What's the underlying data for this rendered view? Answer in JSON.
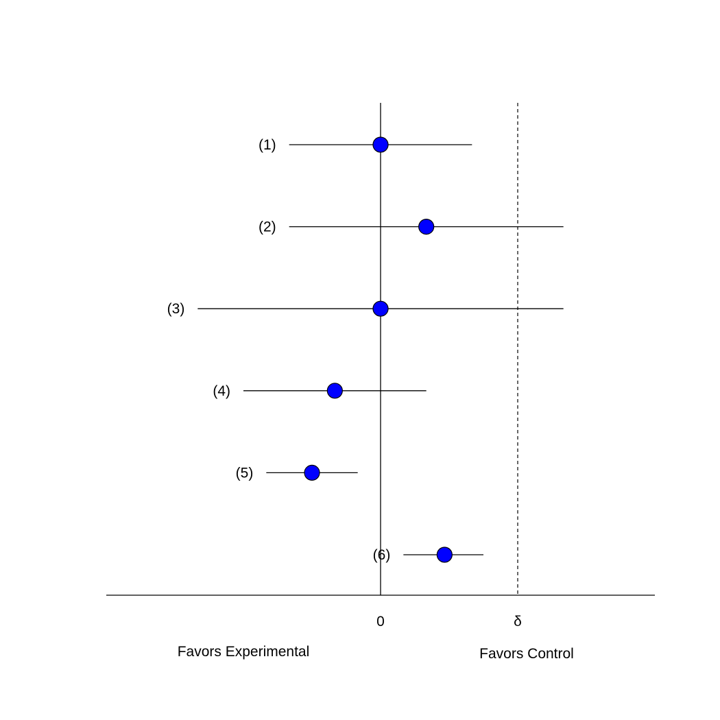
{
  "chart_data": {
    "type": "scatter",
    "subtype": "forest-plot",
    "title": "",
    "xlabel": "",
    "ylabel": "",
    "xlim": [
      -3.0,
      3.0
    ],
    "grid": false,
    "legend": "none",
    "x_ticks": [
      {
        "value": 0,
        "label": "0"
      },
      {
        "value": 1.5,
        "label": "δ"
      }
    ],
    "reference_lines": [
      {
        "name": "zero",
        "value": 0,
        "style": "solid"
      },
      {
        "name": "delta",
        "value": 1.5,
        "style": "dashed"
      }
    ],
    "side_labels": {
      "left": "Favors Experimental",
      "right": "Favors Control"
    },
    "points": [
      {
        "label": "(1)",
        "estimate": 0.0,
        "lower": -1.0,
        "upper": 1.0
      },
      {
        "label": "(2)",
        "estimate": 0.5,
        "lower": -1.0,
        "upper": 2.0
      },
      {
        "label": "(3)",
        "estimate": 0.0,
        "lower": -2.0,
        "upper": 2.0
      },
      {
        "label": "(4)",
        "estimate": -0.5,
        "lower": -1.5,
        "upper": 0.5
      },
      {
        "label": "(5)",
        "estimate": -0.75,
        "lower": -1.25,
        "upper": -0.25
      },
      {
        "label": "(6)",
        "estimate": 0.7,
        "lower": 0.25,
        "upper": 1.125
      }
    ],
    "colors": {
      "marker_fill": "#0000ff",
      "marker_stroke": "#000000",
      "line": "#000000"
    }
  }
}
